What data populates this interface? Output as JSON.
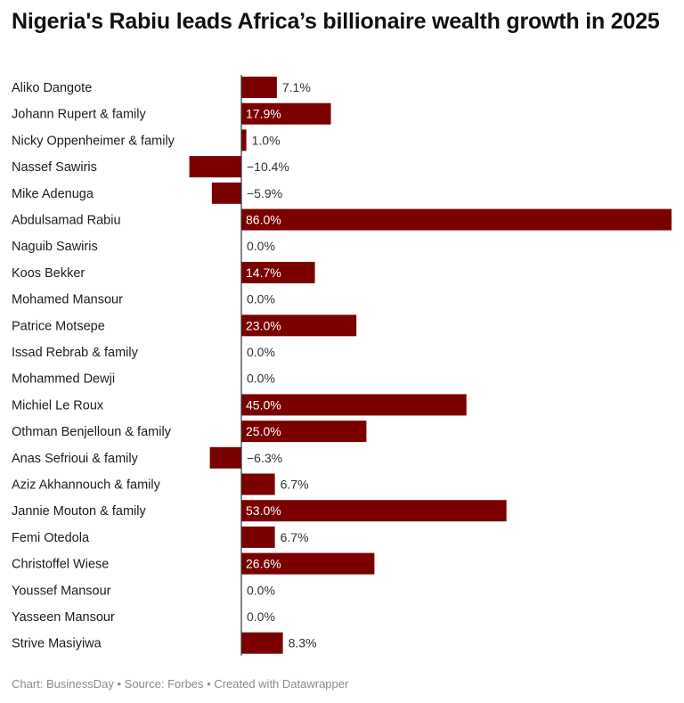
{
  "title": "Nigeria's Rabiu leads Africa’s billionaire wealth growth in 2025",
  "footer": {
    "credit": "Chart: BusinessDay • Source: Forbes • Created with Datawrapper"
  },
  "colors": {
    "bar": "#7a0000",
    "label_inside": "#ffffff",
    "label_outside": "#333333",
    "axis": "#333333",
    "row_label": "#1d1d1d"
  },
  "chart_data": {
    "type": "bar",
    "orientation": "horizontal",
    "categories": [
      "Aliko Dangote",
      "Johann Rupert & family",
      "Nicky Oppenheimer & family",
      "Nassef Sawiris",
      "Mike Adenuga",
      "Abdulsamad Rabiu",
      "Naguib Sawiris",
      "Koos Bekker",
      "Mohamed Mansour",
      "Patrice Motsepe",
      "Issad Rebrab & family",
      "Mohammed Dewji",
      "Michiel Le Roux",
      "Othman Benjelloun & family",
      "Anas Sefrioui & family",
      "Aziz Akhannouch & family",
      "Jannie Mouton & family",
      "Femi Otedola",
      "Christoffel Wiese",
      "Youssef Mansour",
      "Yasseen Mansour",
      "Strive Masiyiwa"
    ],
    "values": [
      7.1,
      17.9,
      1.0,
      -10.4,
      -5.9,
      86.0,
      0.0,
      14.7,
      0.0,
      23.0,
      0.0,
      0.0,
      45.0,
      25.0,
      -6.3,
      6.7,
      53.0,
      6.7,
      26.6,
      0.0,
      0.0,
      8.3
    ],
    "labels": [
      "7.1%",
      "17.9%",
      "1.0%",
      "−10.4%",
      "−5.9%",
      "86.0%",
      "0.0%",
      "14.7%",
      "0.0%",
      "23.0%",
      "0.0%",
      "0.0%",
      "45.0%",
      "25.0%",
      "−6.3%",
      "6.7%",
      "53.0%",
      "6.7%",
      "26.6%",
      "0.0%",
      "0.0%",
      "8.3%"
    ],
    "xlim": [
      -10.4,
      86.0
    ],
    "grid": false,
    "legend": "none"
  }
}
